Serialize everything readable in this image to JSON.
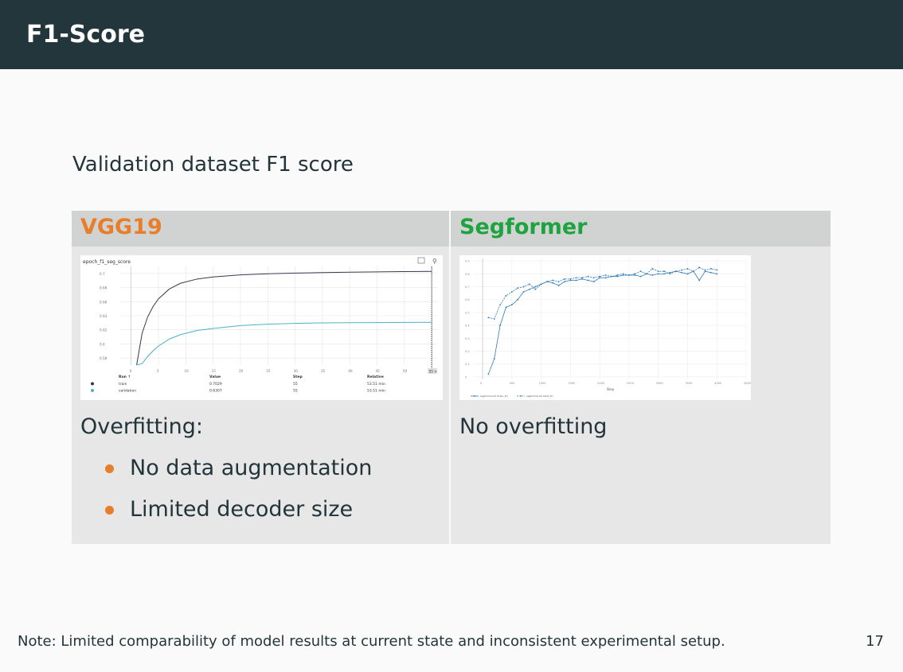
{
  "slide": {
    "title": "F1-Score",
    "subtitle": "Validation dataset F1 score",
    "note": "Note:  Limited comparability of model results at current state and inconsistent experimental setup.",
    "page_number": "17"
  },
  "columns": {
    "left": {
      "header": "VGG19",
      "header_color": "#e87d2b",
      "caption": "Overfitting:",
      "bullets": [
        "No data augmentation",
        "Limited decoder size"
      ],
      "bullet_color": "#e87d2b"
    },
    "right": {
      "header": "Segformer",
      "header_color": "#1ea33e",
      "caption": "No overfitting"
    }
  },
  "chart_data": [
    {
      "type": "line",
      "title": "epoch_f1_seg_score",
      "x_ticks": [
        0,
        5,
        10,
        15,
        20,
        25,
        30,
        35,
        40,
        45,
        50,
        55
      ],
      "y_ticks": [
        0.58,
        0.6,
        0.62,
        0.64,
        0.66,
        0.68,
        0.7
      ],
      "ylim": [
        0.57,
        0.71
      ],
      "xlim": [
        -2,
        56
      ],
      "series": [
        {
          "name": "train",
          "color": "#3d3552",
          "x": [
            1,
            2,
            3,
            4,
            5,
            7,
            9,
            12,
            15,
            20,
            25,
            30,
            35,
            40,
            45,
            50,
            55
          ],
          "y": [
            0.57,
            0.615,
            0.638,
            0.653,
            0.664,
            0.678,
            0.686,
            0.692,
            0.695,
            0.698,
            0.6995,
            0.7005,
            0.7012,
            0.7018,
            0.7022,
            0.7026,
            0.7029
          ]
        },
        {
          "name": "validation",
          "color": "#4ab3c2",
          "x": [
            1,
            2,
            3,
            4,
            5,
            7,
            9,
            12,
            15,
            20,
            25,
            30,
            35,
            40,
            45,
            50,
            55
          ],
          "y": [
            0.56,
            0.572,
            0.582,
            0.59,
            0.597,
            0.607,
            0.613,
            0.619,
            0.622,
            0.626,
            0.628,
            0.6292,
            0.6298,
            0.6301,
            0.6303,
            0.6305,
            0.6307
          ]
        }
      ],
      "table": {
        "headers": [
          "Run ↑",
          "Value",
          "Step",
          "Relative"
        ],
        "rows": [
          {
            "run": "train",
            "value": "0.7029",
            "step": "55",
            "relative": "53.51 min",
            "color": "#3d3552"
          },
          {
            "run": "validation",
            "value": "0.6307",
            "step": "55",
            "relative": "53.51 min",
            "color": "#4ab3c2"
          }
        ]
      },
      "hover_label": "55 ×"
    },
    {
      "type": "line",
      "xlabel": "Step",
      "x_ticks": [
        0,
        500,
        1000,
        1500,
        2000,
        2500,
        3000,
        3500,
        4000,
        4500
      ],
      "y_ticks": [
        0,
        0.1,
        0.2,
        0.3,
        0.4,
        0.5,
        0.6,
        0.7,
        0.8,
        0.9
      ],
      "xlim": [
        -150,
        4500
      ],
      "ylim": [
        -0.02,
        0.92
      ],
      "series": [
        {
          "name": "segformer-b0 (train_f1)",
          "color": "#2d7bb8",
          "dashed": false,
          "x": [
            100,
            200,
            300,
            400,
            500,
            600,
            700,
            800,
            900,
            1000,
            1100,
            1200,
            1300,
            1400,
            1500,
            1600,
            1700,
            1800,
            1900,
            2000,
            2100,
            2200,
            2300,
            2400,
            2500,
            2600,
            2700,
            2800,
            2900,
            3000,
            3100,
            3200,
            3300,
            3400,
            3500,
            3600,
            3700,
            3800,
            3900,
            4000
          ],
          "y": [
            0.02,
            0.14,
            0.4,
            0.54,
            0.56,
            0.6,
            0.66,
            0.68,
            0.7,
            0.72,
            0.74,
            0.73,
            0.71,
            0.74,
            0.75,
            0.75,
            0.76,
            0.75,
            0.74,
            0.77,
            0.77,
            0.78,
            0.78,
            0.79,
            0.79,
            0.79,
            0.78,
            0.8,
            0.79,
            0.8,
            0.8,
            0.81,
            0.82,
            0.81,
            0.8,
            0.82,
            0.75,
            0.82,
            0.81,
            0.8
          ]
        },
        {
          "name": "segformer-b0 (test_f1)",
          "color": "#2d7bb8",
          "dashed": true,
          "x": [
            100,
            200,
            300,
            400,
            500,
            600,
            700,
            800,
            900,
            1000,
            1100,
            1200,
            1300,
            1400,
            1500,
            1600,
            1700,
            1800,
            1900,
            2000,
            2100,
            2200,
            2300,
            2400,
            2500,
            2600,
            2700,
            2800,
            2900,
            3000,
            3100,
            3200,
            3300,
            3400,
            3500,
            3600,
            3700,
            3800,
            3900,
            4000
          ],
          "y": [
            0.46,
            0.45,
            0.56,
            0.63,
            0.66,
            0.69,
            0.7,
            0.72,
            0.68,
            0.72,
            0.74,
            0.75,
            0.74,
            0.76,
            0.76,
            0.77,
            0.77,
            0.78,
            0.77,
            0.78,
            0.79,
            0.78,
            0.79,
            0.8,
            0.79,
            0.8,
            0.82,
            0.8,
            0.84,
            0.82,
            0.82,
            0.8,
            0.82,
            0.83,
            0.84,
            0.82,
            0.85,
            0.83,
            0.84,
            0.83
          ]
        }
      ]
    }
  ]
}
